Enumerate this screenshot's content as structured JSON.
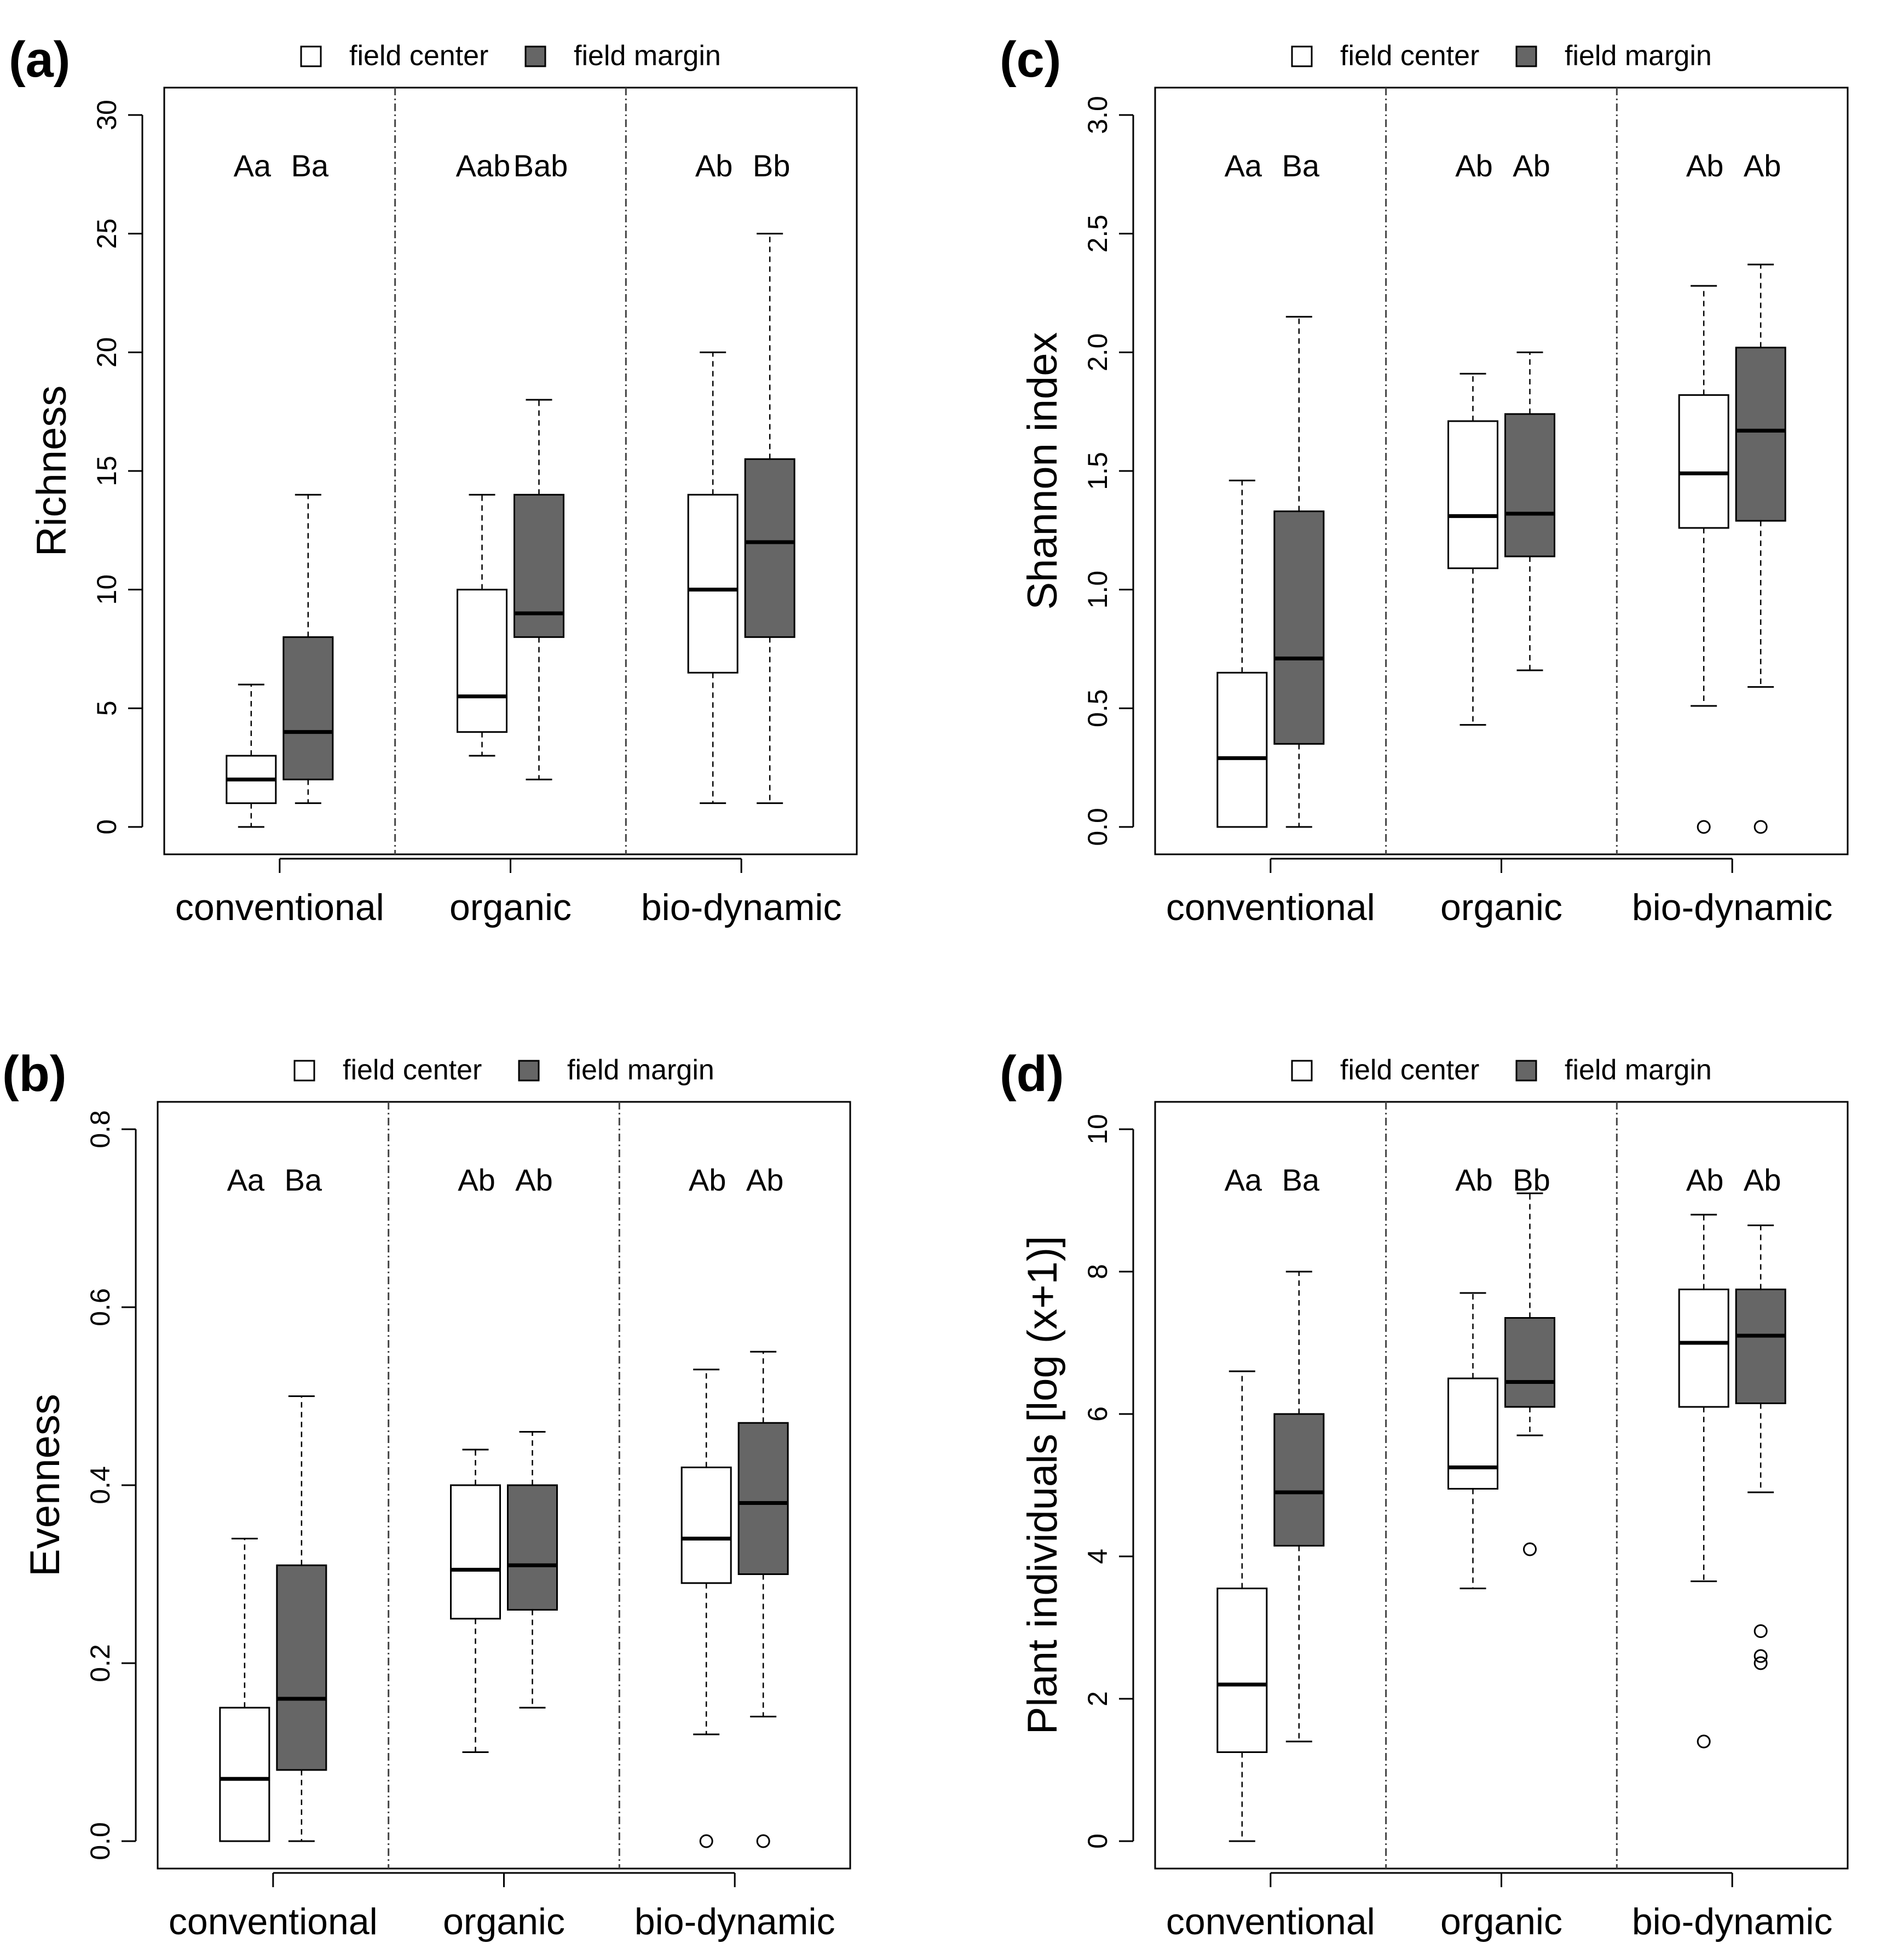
{
  "chart_data": [
    {
      "type": "box",
      "panel_label": "(a)",
      "ylabel": "Richness",
      "ylim": [
        0,
        30
      ],
      "yticks": [
        0,
        5,
        10,
        15,
        20,
        25,
        30
      ],
      "categories": [
        "conventional",
        "organic",
        "bio-dynamic"
      ],
      "legend": [
        "field center",
        "field margin"
      ],
      "group_letters": [
        [
          "Aa",
          "Ba"
        ],
        [
          "Aab",
          "Bab"
        ],
        [
          "Ab",
          "Bb"
        ]
      ],
      "series": [
        {
          "name": "field center",
          "color": "#ffffff",
          "boxes": [
            {
              "min": 0,
              "q1": 1,
              "median": 2,
              "q3": 3,
              "max": 6,
              "outliers": []
            },
            {
              "min": 3,
              "q1": 4,
              "median": 5.5,
              "q3": 10,
              "max": 14,
              "outliers": []
            },
            {
              "min": 1,
              "q1": 6.5,
              "median": 10,
              "q3": 14,
              "max": 20,
              "outliers": []
            }
          ]
        },
        {
          "name": "field margin",
          "color": "#666666",
          "boxes": [
            {
              "min": 1,
              "q1": 2,
              "median": 4,
              "q3": 8,
              "max": 14,
              "outliers": []
            },
            {
              "min": 2,
              "q1": 8,
              "median": 9,
              "q3": 14,
              "max": 18,
              "outliers": []
            },
            {
              "min": 1,
              "q1": 8,
              "median": 12,
              "q3": 15.5,
              "max": 25,
              "outliers": []
            }
          ]
        }
      ]
    },
    {
      "type": "box",
      "panel_label": "(b)",
      "ylabel": "Evenness",
      "ylim": [
        0,
        0.8
      ],
      "yticks": [
        "0.0",
        "0.2",
        "0.4",
        "0.6",
        "0.8"
      ],
      "categories": [
        "conventional",
        "organic",
        "bio-dynamic"
      ],
      "legend": [
        "field center",
        "field margin"
      ],
      "group_letters": [
        [
          "Aa",
          "Ba"
        ],
        [
          "Ab",
          "Ab"
        ],
        [
          "Ab",
          "Ab"
        ]
      ],
      "series": [
        {
          "name": "field center",
          "color": "#ffffff",
          "boxes": [
            {
              "min": 0,
              "q1": 0,
              "median": 0.07,
              "q3": 0.15,
              "max": 0.34,
              "outliers": []
            },
            {
              "min": 0.1,
              "q1": 0.25,
              "median": 0.305,
              "q3": 0.4,
              "max": 0.44,
              "outliers": []
            },
            {
              "min": 0.12,
              "q1": 0.29,
              "median": 0.34,
              "q3": 0.42,
              "max": 0.53,
              "outliers": [
                0
              ]
            }
          ]
        },
        {
          "name": "field margin",
          "color": "#666666",
          "boxes": [
            {
              "min": 0,
              "q1": 0.08,
              "median": 0.16,
              "q3": 0.31,
              "max": 0.5,
              "outliers": []
            },
            {
              "min": 0.15,
              "q1": 0.26,
              "median": 0.31,
              "q3": 0.4,
              "max": 0.46,
              "outliers": []
            },
            {
              "min": 0.14,
              "q1": 0.3,
              "median": 0.38,
              "q3": 0.47,
              "max": 0.55,
              "outliers": [
                0
              ]
            }
          ]
        }
      ]
    },
    {
      "type": "box",
      "panel_label": "(c)",
      "ylabel": "Shannon index",
      "ylim": [
        0,
        3
      ],
      "yticks": [
        "0.0",
        "0.5",
        "1.0",
        "1.5",
        "2.0",
        "2.5",
        "3.0"
      ],
      "categories": [
        "conventional",
        "organic",
        "bio-dynamic"
      ],
      "legend": [
        "field center",
        "field margin"
      ],
      "group_letters": [
        [
          "Aa",
          "Ba"
        ],
        [
          "Ab",
          "Ab"
        ],
        [
          "Ab",
          "Ab"
        ]
      ],
      "series": [
        {
          "name": "field center",
          "color": "#ffffff",
          "boxes": [
            {
              "min": 0,
              "q1": 0,
              "median": 0.29,
              "q3": 0.65,
              "max": 1.46,
              "outliers": []
            },
            {
              "min": 0.43,
              "q1": 1.09,
              "median": 1.31,
              "q3": 1.71,
              "max": 1.91,
              "outliers": []
            },
            {
              "min": 0.51,
              "q1": 1.26,
              "median": 1.49,
              "q3": 1.82,
              "max": 2.28,
              "outliers": [
                0
              ]
            }
          ]
        },
        {
          "name": "field margin",
          "color": "#666666",
          "boxes": [
            {
              "min": 0,
              "q1": 0.35,
              "median": 0.71,
              "q3": 1.33,
              "max": 2.15,
              "outliers": []
            },
            {
              "min": 0.66,
              "q1": 1.14,
              "median": 1.32,
              "q3": 1.74,
              "max": 2.0,
              "outliers": []
            },
            {
              "min": 0.59,
              "q1": 1.29,
              "median": 1.67,
              "q3": 2.02,
              "max": 2.37,
              "outliers": [
                0
              ]
            }
          ]
        }
      ]
    },
    {
      "type": "box",
      "panel_label": "(d)",
      "ylabel": "Plant individuals [log (x+1)]",
      "ylim": [
        0,
        10
      ],
      "yticks": [
        0,
        2,
        4,
        6,
        8,
        10
      ],
      "categories": [
        "conventional",
        "organic",
        "bio-dynamic"
      ],
      "legend": [
        "field center",
        "field margin"
      ],
      "group_letters": [
        [
          "Aa",
          "Ba"
        ],
        [
          "Ab",
          "Bb"
        ],
        [
          "Ab",
          "Ab"
        ]
      ],
      "series": [
        {
          "name": "field center",
          "color": "#ffffff",
          "boxes": [
            {
              "min": 0,
              "q1": 1.25,
              "median": 2.2,
              "q3": 3.55,
              "max": 6.6,
              "outliers": []
            },
            {
              "min": 3.55,
              "q1": 4.95,
              "median": 5.25,
              "q3": 6.5,
              "max": 7.7,
              "outliers": []
            },
            {
              "min": 3.65,
              "q1": 6.1,
              "median": 7.0,
              "q3": 7.75,
              "max": 8.8,
              "outliers": [
                1.4
              ]
            }
          ]
        },
        {
          "name": "field margin",
          "color": "#666666",
          "boxes": [
            {
              "min": 1.4,
              "q1": 4.15,
              "median": 4.9,
              "q3": 6.0,
              "max": 8.0,
              "outliers": []
            },
            {
              "min": 5.7,
              "q1": 6.1,
              "median": 6.45,
              "q3": 7.35,
              "max": 9.1,
              "outliers": [
                4.1
              ]
            },
            {
              "min": 4.9,
              "q1": 6.15,
              "median": 7.1,
              "q3": 7.75,
              "max": 8.65,
              "outliers": [
                2.95,
                2.6,
                2.5
              ]
            }
          ]
        }
      ]
    }
  ]
}
